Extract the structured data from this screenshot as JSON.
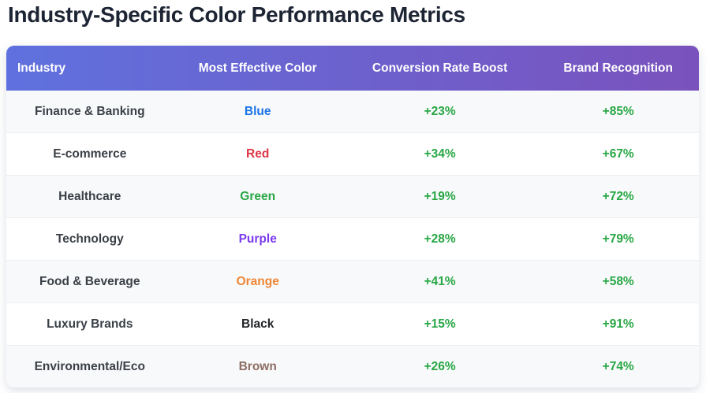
{
  "page": {
    "title": "Industry-Specific Color Performance Metrics"
  },
  "chart_data": {
    "type": "table",
    "title": "Industry-Specific Color Performance Metrics",
    "columns": [
      "Industry",
      "Most Effective Color",
      "Conversion Rate Boost",
      "Brand Recognition"
    ],
    "rows": [
      {
        "industry": "Finance & Banking",
        "color": "Blue",
        "color_hex": "#1a73e8",
        "conversion": "+23%",
        "recognition": "+85%"
      },
      {
        "industry": "E-commerce",
        "color": "Red",
        "color_hex": "#dc3545",
        "conversion": "+34%",
        "recognition": "+67%"
      },
      {
        "industry": "Healthcare",
        "color": "Green",
        "color_hex": "#28a745",
        "conversion": "+19%",
        "recognition": "+72%"
      },
      {
        "industry": "Technology",
        "color": "Purple",
        "color_hex": "#7c3aed",
        "conversion": "+28%",
        "recognition": "+79%"
      },
      {
        "industry": "Food & Beverage",
        "color": "Orange",
        "color_hex": "#ee8634",
        "conversion": "+41%",
        "recognition": "+58%"
      },
      {
        "industry": "Luxury Brands",
        "color": "Black",
        "color_hex": "#212529",
        "conversion": "+15%",
        "recognition": "+91%"
      },
      {
        "industry": "Environmental/Eco",
        "color": "Brown",
        "color_hex": "#8d6e63",
        "conversion": "+26%",
        "recognition": "+74%"
      }
    ]
  },
  "table_header": {
    "col1": "Industry",
    "col2": "Most Effective Color",
    "col3": "Conversion Rate Boost",
    "col4": "Brand Recognition"
  },
  "theme": {
    "header_gradient_start": "#5f71de",
    "header_gradient_end": "#7a52bd",
    "metric_green": "#28a745",
    "row_alt_bg": "#f8f9fa",
    "title_color": "#1d2433"
  }
}
